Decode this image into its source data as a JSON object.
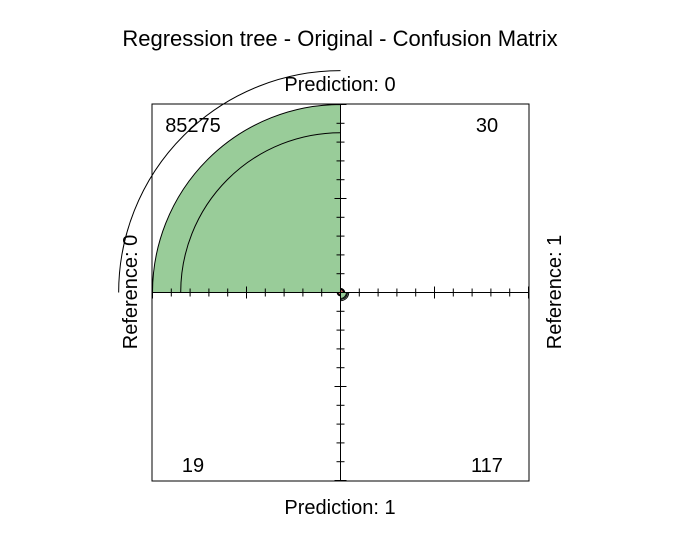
{
  "chart_data": {
    "type": "fourfold",
    "title": "Regression tree - Original - Confusion Matrix",
    "top_label": "Prediction: 0",
    "bottom_label": "Prediction: 1",
    "left_label": "Reference: 0",
    "right_label": "Reference: 1",
    "cells": [
      {
        "quadrant": "top-left",
        "label": "85275",
        "value": 85275,
        "color": "#99cc99"
      },
      {
        "quadrant": "top-right",
        "label": "30",
        "value": 30,
        "color": "#cc6666"
      },
      {
        "quadrant": "bottom-left",
        "label": "19",
        "value": 19,
        "color": "#cc6666"
      },
      {
        "quadrant": "bottom-right",
        "label": "117",
        "value": 117,
        "color": "#99cc99"
      }
    ]
  }
}
